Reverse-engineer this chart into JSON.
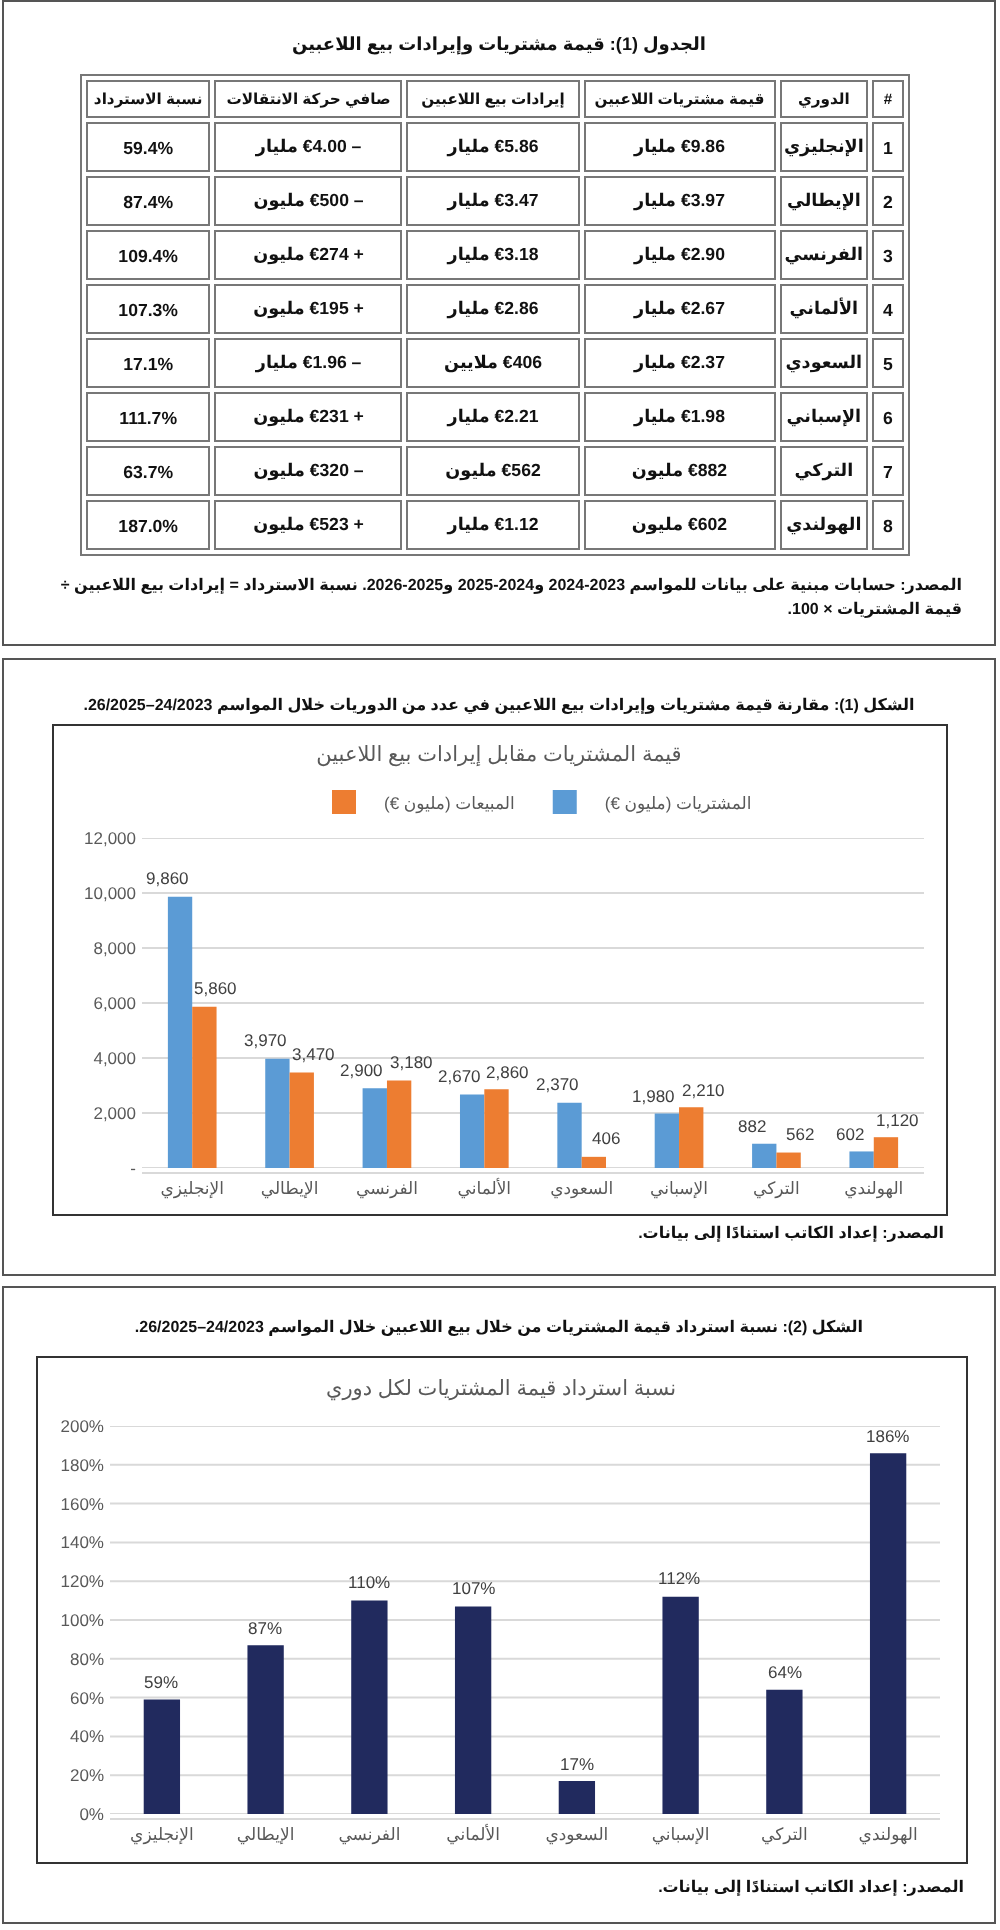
{
  "chart_data": [
    {
      "type": "other",
      "title": "الجدول (1): قيمة مشتريات وإيرادات بيع اللاعبين",
      "ylabel": "الدوري",
      "categories": [
        "الإنجليزي",
        "الإيطالي",
        "الفرنسي",
        "الألماني",
        "السعودي",
        "الإسباني",
        "التركي",
        "الهولندي"
      ],
      "series": [
        {
          "name": "#",
          "values": [
            1,
            2,
            3,
            4,
            5,
            6,
            7,
            8
          ],
          "value_labels": [
            "1",
            "2",
            "3",
            "4",
            "5",
            "6",
            "7",
            "8"
          ]
        },
        {
          "name": "قيمة مشتريات اللاعبين",
          "values": [
            9.86,
            3.97,
            2.9,
            2.67,
            2.37,
            1.98,
            882,
            602
          ],
          "value_labels": [
            "€9.86 مليار",
            "€3.97 مليار",
            "€2.90 مليار",
            "€2.67 مليار",
            "€2.37 مليار",
            "€1.98 مليار",
            "€882 مليون",
            "€602 مليون"
          ]
        },
        {
          "name": "إيرادات بيع اللاعبين",
          "values": [
            5.86,
            3.47,
            3.18,
            2.86,
            406,
            2.21,
            562,
            1.12
          ],
          "value_labels": [
            "€5.86 مليار",
            "€3.47 مليار",
            "€3.18 مليار",
            "€2.86 مليار",
            "€406 ملايين",
            "€2.21 مليار",
            "€562 مليون",
            "€1.12 مليار"
          ]
        },
        {
          "name": "صافي حركة الانتقالات",
          "values": [
            -4.0,
            -500,
            274,
            195,
            -1.96,
            231,
            -320,
            523
          ],
          "value_labels": [
            "– €4.00 مليار",
            "– €500 مليون",
            "+ €274 مليون",
            "+ €195 مليون",
            "– €1.96 مليار",
            "+ €231 مليون",
            "– €320 مليون",
            "+ €523 مليون"
          ]
        },
        {
          "name": "نسبة الاسترداد",
          "values": [
            59.4,
            87.4,
            109.4,
            107.3,
            17.1,
            111.7,
            63.7,
            187.0
          ],
          "value_labels": [
            "59.4%",
            "87.4%",
            "109.4%",
            "107.3%",
            "17.1%",
            "111.7%",
            "63.7%",
            "187.0%"
          ]
        }
      ],
      "annotations": [
        "المصدر: حسابات مبنية على بيانات للمواسم 2023-2024 و2024-2025 و2025-2026. نسبة الاسترداد = إيرادات بيع اللاعبين ÷ قيمة المشتريات × 100."
      ]
    },
    {
      "type": "bar",
      "title": "الشكل (1): مقارنة قيمة مشتريات وإيرادات بيع اللاعبين في عدد من الدوريات خلال المواسم 24/2023–26/2025.",
      "subtitle": "قيمة المشتريات مقابل إيرادات بيع اللاعبين",
      "categories": [
        "الإنجليزي",
        "الإيطالي",
        "الفرنسي",
        "الألماني",
        "السعودي",
        "الإسباني",
        "التركي",
        "الهولندي"
      ],
      "series": [
        {
          "name": "المشتريات (مليون €)",
          "color": "#5b9bd5",
          "values": [
            9860,
            3970,
            2900,
            2670,
            2370,
            1980,
            882,
            602
          ],
          "value_labels": [
            "9,860",
            "3,970",
            "2,900",
            "2,670",
            "2,370",
            "1,980",
            "882",
            "602"
          ]
        },
        {
          "name": "المبيعات (مليون €)",
          "color": "#ed7d31",
          "values": [
            5860,
            3470,
            3180,
            2860,
            406,
            2210,
            562,
            1120
          ],
          "value_labels": [
            "5,860",
            "3,470",
            "3,180",
            "2,860",
            "406",
            "2,210",
            "562",
            "1,120"
          ]
        }
      ],
      "ylim": [
        0,
        12000
      ],
      "yticks": [
        {
          "value": 0,
          "label": "-"
        },
        {
          "value": 2000,
          "label": "2,000"
        },
        {
          "value": 4000,
          "label": "4,000"
        },
        {
          "value": 6000,
          "label": "6,000"
        },
        {
          "value": 8000,
          "label": "8,000"
        },
        {
          "value": 10000,
          "label": "10,000"
        },
        {
          "value": 12000,
          "label": "12,000"
        }
      ],
      "grid": "y",
      "legend": "top",
      "annotations": [
        "المصدر: إعداد الكاتب استنادًا إلى بيانات."
      ]
    },
    {
      "type": "bar",
      "title": "الشكل (2): نسبة استرداد قيمة المشتريات من خلال بيع اللاعبين خلال المواسم 24/2023–26/2025.",
      "subtitle": "نسبة استرداد قيمة المشتريات لكل دوري",
      "categories": [
        "الإنجليزي",
        "الإيطالي",
        "الفرنسي",
        "الألماني",
        "السعودي",
        "الإسباني",
        "التركي",
        "الهولندي"
      ],
      "values": [
        59,
        87,
        110,
        107,
        17,
        112,
        64,
        186
      ],
      "value_labels": [
        "59%",
        "87%",
        "110%",
        "107%",
        "17%",
        "112%",
        "64%",
        "186%"
      ],
      "color": "#212a5e",
      "ylim": [
        0,
        200
      ],
      "yticks": [
        {
          "value": 0,
          "label": "0%"
        },
        {
          "value": 20,
          "label": "20%"
        },
        {
          "value": 40,
          "label": "40%"
        },
        {
          "value": 60,
          "label": "60%"
        },
        {
          "value": 80,
          "label": "80%"
        },
        {
          "value": 100,
          "label": "100%"
        },
        {
          "value": 120,
          "label": "120%"
        },
        {
          "value": 140,
          "label": "140%"
        },
        {
          "value": 160,
          "label": "160%"
        },
        {
          "value": 180,
          "label": "180%"
        },
        {
          "value": 200,
          "label": "200%"
        }
      ],
      "grid": "y",
      "annotations": [
        "المصدر: إعداد الكاتب استنادًا إلى بيانات."
      ]
    }
  ]
}
